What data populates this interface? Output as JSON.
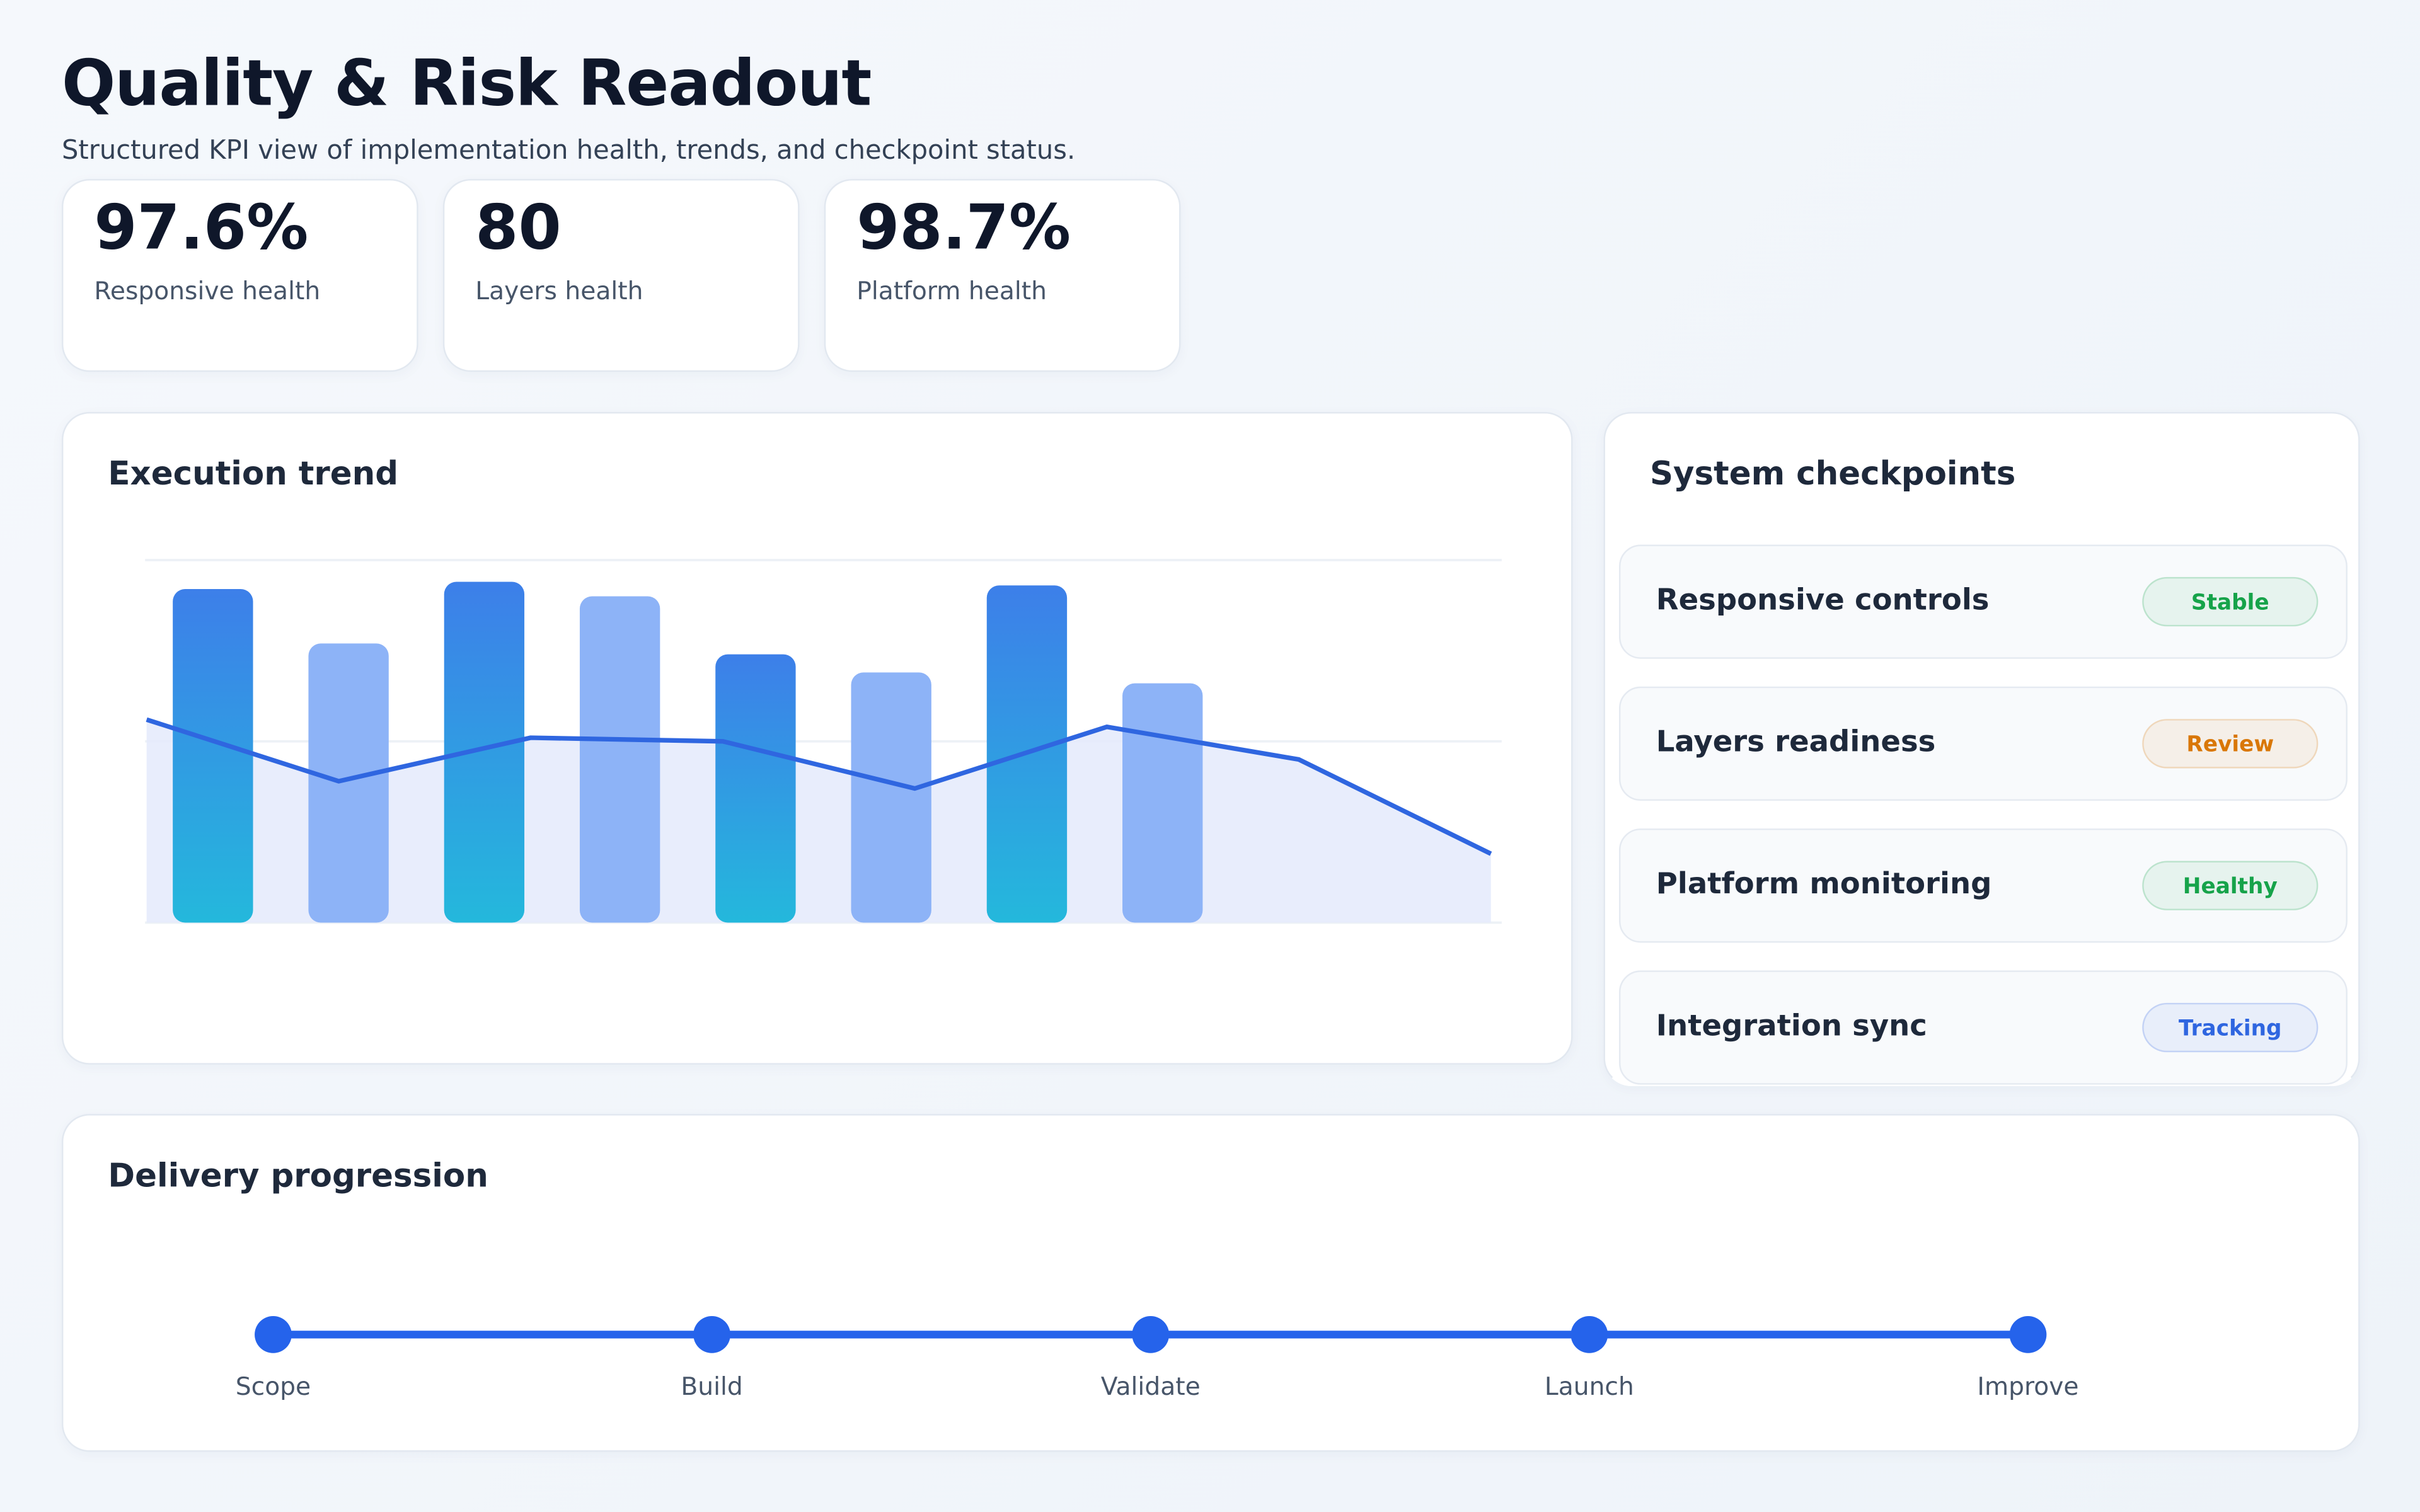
{
  "header": {
    "title": "Quality & Risk Readout",
    "subtitle": "Structured KPI view of implementation health, trends, and checkpoint status."
  },
  "kpis": [
    {
      "value": "97.6%",
      "label": "Responsive health"
    },
    {
      "value": "80",
      "label": "Layers health"
    },
    {
      "value": "98.7%",
      "label": "Platform health"
    }
  ],
  "chart_data": {
    "type": "bar-line",
    "title": "Execution trend",
    "ylim": [
      0,
      100
    ],
    "gridlines": [
      0,
      50,
      100
    ],
    "bars": {
      "values": [
        92,
        77,
        94,
        90,
        74,
        69,
        93,
        66,
        null,
        null
      ],
      "colors": [
        "#3d7fe9",
        "#8db3f7",
        "#3d7fe9",
        "#8db3f7",
        "#3d7fe9",
        "#8db3f7",
        "#3d7fe9",
        "#8db3f7",
        null,
        null
      ],
      "gradient": [
        true,
        false,
        true,
        false,
        true,
        false,
        true,
        false,
        false,
        false
      ],
      "gradient_end": "#24b8dc"
    },
    "line": {
      "values": [
        56,
        39,
        51,
        50,
        37,
        54,
        45,
        19
      ],
      "color": "#2f66e0",
      "area_color": "#e4eafb"
    }
  },
  "checkpoints": {
    "title": "System checkpoints",
    "items": [
      {
        "name": "Responsive controls",
        "status": "Stable",
        "color": "#16a34a"
      },
      {
        "name": "Layers readiness",
        "status": "Review",
        "color": "#d97706"
      },
      {
        "name": "Platform monitoring",
        "status": "Healthy",
        "color": "#16a34a"
      },
      {
        "name": "Integration sync",
        "status": "Tracking",
        "color": "#2f66e0"
      }
    ]
  },
  "progression": {
    "title": "Delivery progression",
    "steps": [
      "Scope",
      "Build",
      "Validate",
      "Launch",
      "Improve"
    ],
    "color": "#2563eb"
  }
}
